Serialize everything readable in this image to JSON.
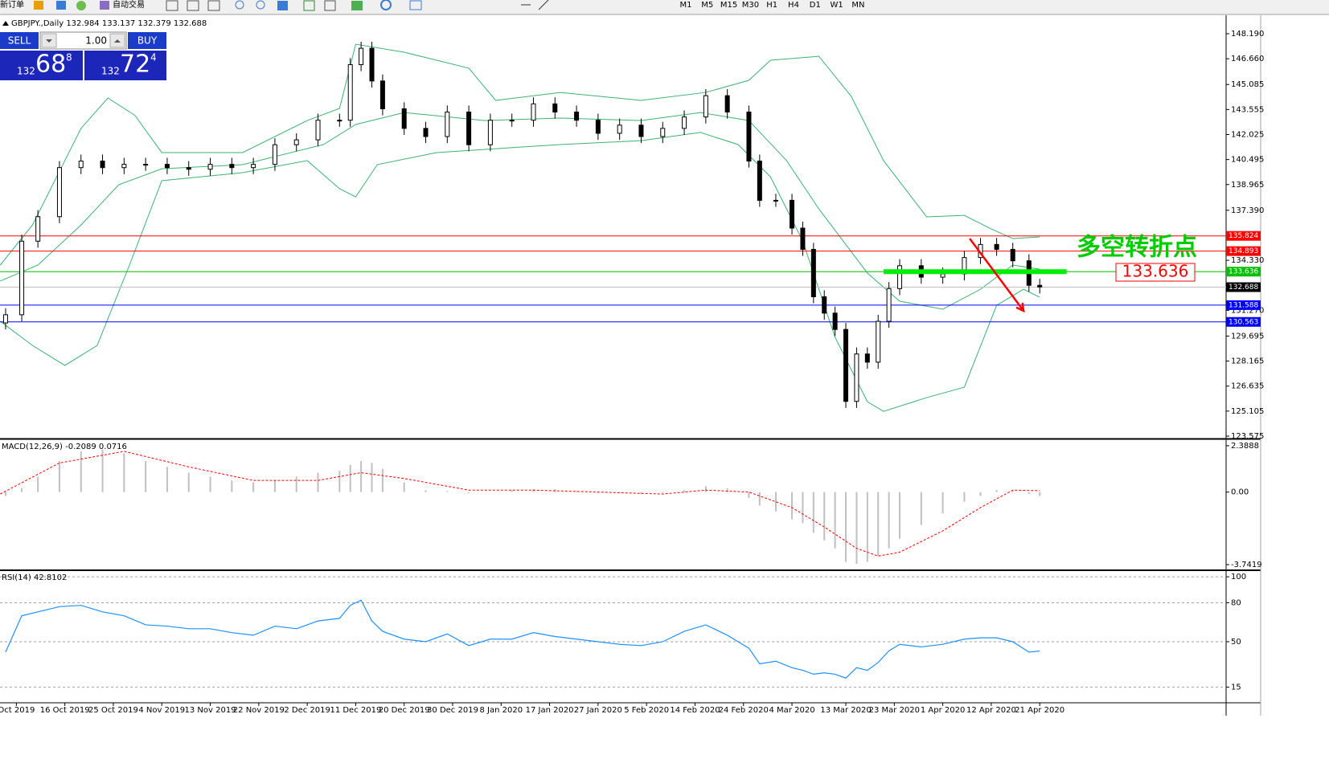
{
  "toolbar": {
    "new_order": "新订单",
    "auto_trading": "自动交易",
    "timeframes": [
      "M1",
      "M5",
      "M15",
      "M30",
      "H1",
      "H4",
      "D1",
      "W1",
      "MN"
    ]
  },
  "trade_panel": {
    "sell": "SELL",
    "buy": "BUY",
    "lots": "1.00",
    "bid_big": 132,
    "bid_mid": 68,
    "bid_small": 8,
    "ask_big": 132,
    "ask_mid": 72,
    "ask_small": 4
  },
  "chart_data": [
    {
      "type": "candlestick",
      "title": "GBPJPY.,Daily  132.984 133.137 132.379 132.688",
      "xlim": [
        -1.04,
        226.6
      ],
      "ylim": [
        123.477,
        149.369
      ],
      "yticks": [
        {
          "value": 148.19,
          "label": "148.190"
        },
        {
          "value": 146.66,
          "label": "146.660"
        },
        {
          "value": 145.085,
          "label": "145.085"
        },
        {
          "value": 143.555,
          "label": "143.555"
        },
        {
          "value": 142.025,
          "label": "142.025"
        },
        {
          "value": 140.495,
          "label": "140.495"
        },
        {
          "value": 138.965,
          "label": "138.965"
        },
        {
          "value": 137.39,
          "label": "137.390"
        },
        {
          "value": 134.33,
          "label": "134.330"
        },
        {
          "value": 131.27,
          "label": "131.270"
        },
        {
          "value": 129.695,
          "label": "129.695"
        },
        {
          "value": 128.165,
          "label": "128.165"
        },
        {
          "value": 126.635,
          "label": "126.635"
        },
        {
          "value": 125.105,
          "label": "125.105"
        },
        {
          "value": 123.575,
          "label": "123.575"
        }
      ],
      "x": [
        0,
        3,
        6,
        10,
        14,
        18,
        22,
        26,
        30,
        34,
        38,
        42,
        46,
        50,
        54,
        58,
        62,
        64,
        66,
        68,
        70,
        74,
        78,
        82,
        86,
        90,
        94,
        98,
        102,
        106,
        110,
        114,
        118,
        122,
        126,
        130,
        134,
        138,
        140,
        143,
        146,
        148,
        150,
        152,
        154,
        156,
        158,
        160,
        162,
        164,
        166,
        170,
        174,
        178,
        181,
        184,
        187,
        190,
        192
      ],
      "open": [
        130.5,
        131.0,
        135.5,
        137.0,
        140.0,
        140.4,
        140.0,
        140.2,
        140.2,
        140.0,
        139.9,
        140.2,
        140.0,
        140.2,
        141.4,
        141.7,
        142.9,
        142.9,
        146.3,
        147.3,
        145.3,
        143.6,
        142.4,
        141.9,
        143.4,
        141.4,
        142.9,
        142.9,
        143.9,
        143.4,
        142.9,
        142.1,
        142.6,
        141.9,
        142.4,
        143.1,
        144.4,
        143.4,
        140.4,
        138.0,
        138.0,
        136.3,
        135.0,
        132.1,
        131.1,
        130.1,
        125.7,
        128.6,
        128.1,
        130.6,
        132.6,
        134.0,
        133.3,
        133.5,
        134.5,
        135.3,
        135.0,
        134.3,
        132.8
      ],
      "high": [
        131.4,
        135.9,
        137.4,
        140.4,
        140.8,
        140.8,
        140.6,
        140.6,
        140.6,
        140.4,
        140.6,
        140.6,
        140.6,
        141.8,
        142.1,
        143.3,
        143.3,
        146.7,
        147.7,
        147.7,
        145.7,
        144.0,
        142.8,
        143.8,
        143.8,
        143.3,
        143.3,
        144.3,
        144.3,
        143.8,
        143.3,
        143.0,
        143.0,
        142.8,
        143.5,
        144.8,
        144.8,
        143.8,
        140.8,
        138.4,
        138.4,
        136.7,
        135.4,
        132.5,
        131.5,
        130.5,
        129.0,
        129.0,
        131.0,
        133.0,
        134.4,
        134.4,
        133.9,
        134.9,
        135.7,
        135.7,
        135.4,
        134.7,
        133.2
      ],
      "low": [
        130.1,
        130.6,
        135.1,
        136.6,
        139.6,
        139.6,
        139.6,
        139.8,
        139.6,
        139.5,
        139.5,
        139.6,
        139.6,
        139.8,
        141.0,
        141.3,
        142.5,
        142.5,
        145.9,
        144.9,
        143.2,
        142.0,
        141.5,
        141.5,
        141.0,
        141.0,
        142.5,
        142.5,
        143.0,
        142.5,
        141.7,
        141.7,
        141.5,
        141.5,
        142.0,
        142.7,
        143.0,
        140.0,
        137.6,
        137.6,
        135.9,
        134.6,
        131.7,
        130.7,
        129.7,
        125.3,
        125.3,
        127.7,
        127.7,
        130.2,
        132.2,
        132.9,
        132.9,
        133.1,
        134.1,
        134.6,
        133.9,
        132.4,
        132.3
      ],
      "close": [
        131.0,
        135.5,
        137.0,
        140.0,
        140.4,
        140.0,
        140.2,
        140.2,
        140.0,
        139.9,
        140.2,
        140.0,
        140.2,
        141.4,
        141.7,
        142.9,
        142.9,
        146.3,
        147.3,
        145.3,
        143.6,
        142.4,
        141.9,
        143.4,
        141.4,
        142.9,
        142.9,
        143.9,
        143.4,
        142.9,
        142.1,
        142.6,
        141.9,
        142.4,
        143.1,
        144.4,
        143.4,
        140.4,
        138.0,
        138.0,
        136.3,
        135.0,
        132.1,
        131.1,
        130.1,
        125.7,
        128.6,
        128.1,
        130.6,
        132.6,
        134.0,
        133.3,
        133.5,
        134.5,
        135.3,
        135.0,
        134.3,
        132.8,
        132.7
      ],
      "up_color": "#ffffff",
      "down_color": "#000000",
      "band_color": "#3cb371",
      "bands": [
        {
          "x": [
            -1,
            5,
            11,
            14,
            19,
            24,
            29,
            44,
            56,
            62,
            65,
            74,
            86,
            91,
            103,
            118,
            130,
            138,
            142,
            151,
            157,
            163,
            171,
            178,
            183,
            187,
            192
          ],
          "values": [
            134.04,
            136.5,
            140.43,
            142.4,
            144.26,
            143.2,
            140.92,
            140.92,
            142.88,
            143.62,
            147.55,
            147.06,
            146.08,
            144.11,
            144.6,
            144.11,
            144.6,
            145.34,
            146.57,
            146.81,
            144.36,
            140.43,
            136.99,
            137.08,
            136.25,
            135.66,
            135.76
          ]
        },
        {
          "x": [
            -1,
            6,
            14,
            21,
            29,
            44,
            59,
            65,
            74,
            89,
            103,
            118,
            129,
            138,
            145,
            151,
            160,
            166,
            174,
            181,
            187,
            192
          ],
          "values": [
            133.06,
            134.04,
            136.49,
            138.95,
            139.93,
            140.18,
            141.41,
            142.64,
            143.37,
            142.88,
            143.03,
            142.88,
            143.37,
            142.88,
            140.43,
            137.47,
            133.55,
            131.83,
            131.34,
            132.56,
            134.04,
            133.79
          ]
        },
        {
          "x": [
            -1,
            5,
            11,
            17,
            23,
            29,
            44,
            56,
            62,
            65,
            69,
            80,
            91,
            103,
            118,
            129,
            136,
            142,
            148,
            154,
            160,
            163,
            171,
            178,
            184,
            189,
            192
          ],
          "values": [
            130.6,
            129.12,
            127.9,
            129.12,
            134.04,
            139.2,
            139.69,
            140.43,
            138.71,
            138.21,
            140.18,
            140.92,
            141.16,
            141.41,
            141.65,
            142.15,
            141.41,
            139.44,
            135.51,
            129.62,
            125.68,
            125.09,
            125.93,
            126.57,
            131.58,
            132.56,
            132.07
          ]
        }
      ],
      "hlines": [
        {
          "value": 135.824,
          "color": "#ff0000",
          "marker_color": "#ff0000"
        },
        {
          "value": 134.893,
          "color": "#ff0000",
          "marker_color": "#ff0000"
        },
        {
          "value": 133.636,
          "color": "#00c000",
          "marker_color": "#00c000"
        },
        {
          "value": 132.688,
          "color": "#c0c0c0",
          "marker_color": "#000000"
        },
        {
          "value": 131.588,
          "color": "#0000ff",
          "marker_color": "#0000ff"
        },
        {
          "value": 130.563,
          "color": "#0000ff",
          "marker_color": "#0000ff"
        }
      ],
      "key_level": {
        "value": 133.636,
        "x": [
          163,
          197
        ],
        "color": "#00ee00"
      },
      "arrow": {
        "x": [
          179,
          189
        ],
        "y": [
          135.66,
          131.24
        ],
        "color": "#ff0000"
      },
      "annotation": {
        "text": "多空转折点",
        "level": 133.636,
        "color": "#00cc00",
        "level_color": "#ff0000"
      }
    },
    {
      "type": "macd",
      "title": "MACD(12,26,9) -0.2089 0.0716",
      "xlim": [
        -1.04,
        226.6
      ],
      "ylim": [
        -3.948,
        2.636
      ],
      "yticks": [
        2.3888,
        {
          "value": 0,
          "label": "0.00"
        },
        -3.7419
      ],
      "x": [
        0,
        3,
        6,
        10,
        14,
        18,
        22,
        26,
        30,
        34,
        38,
        42,
        46,
        50,
        54,
        58,
        62,
        64,
        66,
        68,
        70,
        74,
        78,
        82,
        86,
        90,
        94,
        98,
        102,
        106,
        110,
        114,
        118,
        122,
        126,
        130,
        134,
        138,
        140,
        143,
        146,
        148,
        150,
        152,
        154,
        156,
        158,
        160,
        162,
        164,
        166,
        170,
        174,
        178,
        181,
        184,
        187,
        190,
        192
      ],
      "values": [
        -0.2,
        0.2,
        0.8,
        1.6,
        2.1,
        2.2,
        2.0,
        1.6,
        1.3,
        1.0,
        0.8,
        0.6,
        0.5,
        0.6,
        0.8,
        1.0,
        1.1,
        1.4,
        1.6,
        1.5,
        1.2,
        0.5,
        0.1,
        0.05,
        -0.05,
        0.0,
        0.1,
        0.15,
        0.15,
        0.05,
        -0.05,
        -0.05,
        -0.1,
        -0.05,
        0.1,
        0.3,
        0.2,
        -0.3,
        -0.7,
        -1.0,
        -1.4,
        -1.6,
        -2.1,
        -2.5,
        -2.9,
        -3.6,
        -3.7,
        -3.6,
        -3.3,
        -2.9,
        -2.4,
        -1.7,
        -1.1,
        -0.5,
        -0.2,
        0.1,
        0.1,
        -0.1,
        -0.2089
      ],
      "color": "#c0c0c0",
      "signal": {
        "x": [
          -1,
          10,
          22,
          34,
          46,
          58,
          66,
          74,
          86,
          98,
          110,
          122,
          130,
          138,
          146,
          152,
          158,
          162,
          166,
          174,
          181,
          187,
          192
        ],
        "values": [
          -0.1,
          1.5,
          2.1,
          1.3,
          0.6,
          0.6,
          1.0,
          0.7,
          0.1,
          0.1,
          0.0,
          -0.1,
          0.1,
          0.0,
          -0.8,
          -1.8,
          -2.9,
          -3.3,
          -3.1,
          -2.0,
          -0.8,
          0.1,
          0.0716
        ],
        "color": "#ff0000"
      }
    },
    {
      "type": "line",
      "title": "RSI(14) 42.8102",
      "xlim": [
        -1.04,
        226.6
      ],
      "ylim": [
        3.6,
        103.8
      ],
      "yticks": [
        100,
        80,
        50,
        15
      ],
      "x": [
        0,
        3,
        6,
        10,
        14,
        18,
        22,
        26,
        30,
        34,
        38,
        42,
        46,
        50,
        54,
        58,
        62,
        64,
        66,
        68,
        70,
        74,
        78,
        82,
        86,
        90,
        94,
        98,
        102,
        106,
        110,
        114,
        118,
        122,
        126,
        130,
        134,
        138,
        140,
        143,
        146,
        148,
        150,
        152,
        154,
        156,
        158,
        160,
        162,
        164,
        166,
        170,
        174,
        178,
        181,
        184,
        187,
        190,
        192
      ],
      "values": [
        42,
        70,
        73,
        77,
        78,
        73,
        70,
        63,
        62,
        60,
        60,
        57,
        55,
        62,
        60,
        66,
        68,
        78,
        82,
        66,
        58,
        52,
        50,
        56,
        47,
        52,
        52,
        57,
        54,
        52,
        50,
        48,
        47,
        50,
        58,
        63,
        55,
        45,
        33,
        35,
        30,
        28,
        25,
        26,
        25,
        22,
        30,
        28,
        34,
        43,
        48,
        46,
        48,
        52,
        53,
        53,
        50,
        42,
        42.8102
      ],
      "color": "#1e90ff",
      "xticks": [
        {
          "value": 2,
          "label": "Oct 2019"
        },
        {
          "value": 11,
          "label": "16 Oct 2019"
        },
        {
          "value": 20,
          "label": "25 Oct 2019"
        },
        {
          "value": 29,
          "label": "4 Nov 2019"
        },
        {
          "value": 38,
          "label": "13 Nov 2019"
        },
        {
          "value": 47,
          "label": "22 Nov 2019"
        },
        {
          "value": 56,
          "label": "2 Dec 2019"
        },
        {
          "value": 65,
          "label": "11 Dec 2019"
        },
        {
          "value": 74,
          "label": "20 Dec 2019"
        },
        {
          "value": 83,
          "label": "30 Dec 2019"
        },
        {
          "value": 92,
          "label": "8 Jan 2020"
        },
        {
          "value": 101,
          "label": "17 Jan 2020"
        },
        {
          "value": 110,
          "label": "27 Jan 2020"
        },
        {
          "value": 119,
          "label": "5 Feb 2020"
        },
        {
          "value": 128,
          "label": "14 Feb 2020"
        },
        {
          "value": 137,
          "label": "24 Feb 2020"
        },
        {
          "value": 146,
          "label": "4 Mar 2020"
        },
        {
          "value": 156,
          "label": "13 Mar 2020"
        },
        {
          "value": 165,
          "label": "23 Mar 2020"
        },
        {
          "value": 174,
          "label": "1 Apr 2020"
        },
        {
          "value": 183,
          "label": "12 Apr 2020"
        },
        {
          "value": 192,
          "label": "21 Apr 2020"
        }
      ]
    }
  ]
}
